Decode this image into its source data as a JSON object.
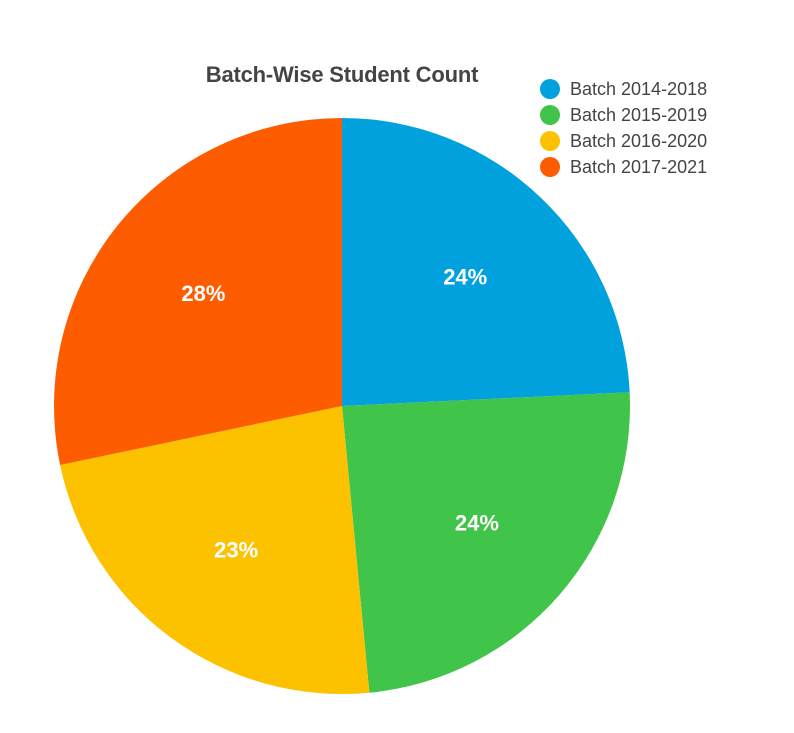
{
  "chart_data": {
    "type": "pie",
    "title": "Batch-Wise Student Count",
    "categories": [
      "Batch 2014-2018",
      "Batch 2015-2019",
      "Batch 2016-2020",
      "Batch 2017-2021"
    ],
    "values": [
      24,
      24,
      23,
      28
    ],
    "labels": [
      "24%",
      "24%",
      "23%",
      "28%"
    ],
    "colors": [
      "#01a1dd",
      "#40c44a",
      "#fcc200",
      "#fe5c00"
    ],
    "start_angle_deg": 0,
    "direction": "clockwise",
    "legend_position": "top-right"
  }
}
